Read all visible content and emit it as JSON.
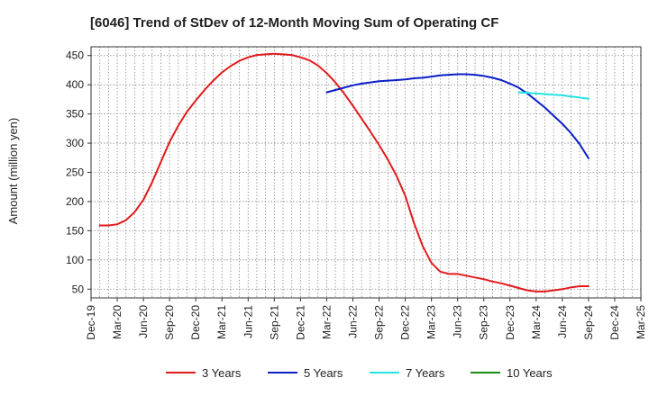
{
  "chart_data": {
    "type": "line",
    "title": "[6046]  Trend of StDev of 12-Month Moving Sum of Operating CF",
    "xlabel": "",
    "ylabel": "Amount (million yen)",
    "x_ticks": [
      "Dec-19",
      "Mar-20",
      "Jun-20",
      "Sep-20",
      "Dec-20",
      "Mar-21",
      "Jun-21",
      "Sep-21",
      "Dec-21",
      "Mar-22",
      "Jun-22",
      "Sep-22",
      "Dec-22",
      "Mar-23",
      "Jun-23",
      "Sep-23",
      "Dec-23",
      "Mar-24",
      "Jun-24",
      "Sep-24",
      "Dec-24",
      "Mar-25"
    ],
    "y_ticks": [
      50,
      100,
      150,
      200,
      250,
      300,
      350,
      400,
      450
    ],
    "ylim": [
      35,
      465
    ],
    "grid": true,
    "legend_position": "bottom",
    "series": [
      {
        "name": "3 Years",
        "color": "#e31a1c",
        "x": [
          "Jan-20",
          "Feb-20",
          "Mar-20",
          "Apr-20",
          "May-20",
          "Jun-20",
          "Jul-20",
          "Aug-20",
          "Sep-20",
          "Oct-20",
          "Nov-20",
          "Dec-20",
          "Jan-21",
          "Feb-21",
          "Mar-21",
          "Apr-21",
          "May-21",
          "Jun-21",
          "Jul-21",
          "Aug-21",
          "Sep-21",
          "Oct-21",
          "Nov-21",
          "Dec-21",
          "Jan-22",
          "Feb-22",
          "Mar-22",
          "Apr-22",
          "May-22",
          "Jun-22",
          "Jul-22",
          "Aug-22",
          "Sep-22",
          "Oct-22",
          "Nov-22",
          "Dec-22",
          "Jan-23",
          "Feb-23",
          "Mar-23",
          "Apr-23",
          "May-23",
          "Jun-23",
          "Jul-23",
          "Aug-23",
          "Sep-23",
          "Oct-23",
          "Nov-23",
          "Dec-23",
          "Jan-24",
          "Feb-24",
          "Mar-24",
          "Apr-24",
          "May-24",
          "Jun-24",
          "Jul-24",
          "Aug-24",
          "Sep-24"
        ],
        "values": [
          159,
          159,
          161,
          168,
          182,
          203,
          233,
          268,
          302,
          330,
          354,
          373,
          391,
          407,
          421,
          432,
          441,
          447,
          451,
          452,
          453,
          452,
          451,
          447,
          442,
          433,
          420,
          404,
          385,
          364,
          342,
          320,
          297,
          272,
          244,
          210,
          163,
          124,
          95,
          80,
          76,
          76,
          73,
          70,
          67,
          63,
          60,
          56,
          52,
          48,
          46,
          46,
          48,
          50,
          53,
          55,
          55
        ],
        "values_note": ""
      },
      {
        "name": "5 Years",
        "color": "#0b1ec8",
        "x": [
          "Mar-22",
          "Apr-22",
          "May-22",
          "Jun-22",
          "Jul-22",
          "Aug-22",
          "Sep-22",
          "Oct-22",
          "Nov-22",
          "Dec-22",
          "Jan-23",
          "Feb-23",
          "Mar-23",
          "Apr-23",
          "May-23",
          "Jun-23",
          "Jul-23",
          "Aug-23",
          "Sep-23",
          "Oct-23",
          "Nov-23",
          "Dec-23",
          "Jan-24",
          "Feb-24",
          "Mar-24",
          "Apr-24",
          "May-24",
          "Jun-24",
          "Jul-24",
          "Aug-24",
          "Sep-24"
        ],
        "values": [
          387,
          391,
          395,
          399,
          402,
          404,
          406,
          407,
          408,
          409,
          411,
          412,
          414,
          416,
          417,
          418,
          418,
          417,
          415,
          412,
          408,
          402,
          395,
          385,
          373,
          361,
          347,
          333,
          317,
          298,
          274
        ]
      },
      {
        "name": "7 Years",
        "color": "#22e3e3",
        "x": [
          "Jan-24",
          "Feb-24",
          "Mar-24",
          "Apr-24",
          "May-24",
          "Jun-24",
          "Jul-24",
          "Aug-24",
          "Sep-24"
        ],
        "values": [
          387,
          386,
          385,
          384,
          383,
          382,
          380,
          378,
          376
        ]
      },
      {
        "name": "10 Years",
        "color": "#1a8a1a",
        "x": [],
        "values": []
      }
    ]
  }
}
